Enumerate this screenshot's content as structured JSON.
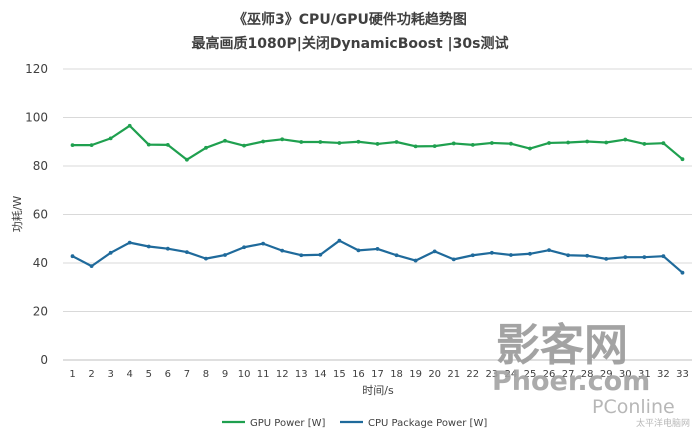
{
  "chart_data": {
    "type": "line",
    "title": "《巫师3》CPU/GPU硬件功耗趋势图",
    "subtitle": "最高画质1080P|关闭DynamicBoost |30s测试",
    "xlabel": "时间/s",
    "ylabel": "功耗/W",
    "ylim": [
      0,
      120
    ],
    "yticks": [
      "0",
      "20",
      "40",
      "60",
      "80",
      "100",
      "120"
    ],
    "grid": true,
    "legend_position": "bottom",
    "x": [
      "1",
      "2",
      "3",
      "4",
      "5",
      "6",
      "7",
      "8",
      "9",
      "10",
      "11",
      "12",
      "13",
      "14",
      "15",
      "16",
      "17",
      "18",
      "19",
      "20",
      "21",
      "22",
      "23",
      "24",
      "25",
      "26",
      "27",
      "28",
      "29",
      "30",
      "31",
      "32",
      "33"
    ],
    "series": [
      {
        "name": "GPU Power [W]",
        "color": "#1fa04f",
        "values": [
          88.6,
          88.6,
          91.4,
          96.6,
          88.8,
          88.7,
          82.6,
          87.5,
          90.4,
          88.4,
          90.1,
          91.0,
          89.9,
          89.9,
          89.5,
          90.0,
          89.1,
          89.9,
          88.1,
          88.2,
          89.3,
          88.7,
          89.5,
          89.2,
          87.2,
          89.5,
          89.7,
          90.1,
          89.7,
          90.9,
          89.1,
          89.4,
          82.8
        ]
      },
      {
        "name": "CPU Package Power [W]",
        "color": "#1f6a9b",
        "values": [
          42.8,
          38.7,
          44.2,
          48.4,
          46.8,
          45.9,
          44.5,
          41.8,
          43.3,
          46.5,
          48.0,
          45.1,
          43.2,
          43.4,
          49.2,
          45.2,
          45.8,
          43.2,
          41.0,
          44.8,
          41.5,
          43.2,
          44.2,
          43.3,
          43.8,
          45.3,
          43.2,
          43.0,
          41.7,
          42.4,
          42.4,
          42.8,
          36.0
        ]
      }
    ]
  },
  "watermark": {
    "main": "影客网",
    "site": "Phoer.com",
    "brand": "PConline",
    "brand_sub": "太平洋电脑网"
  }
}
